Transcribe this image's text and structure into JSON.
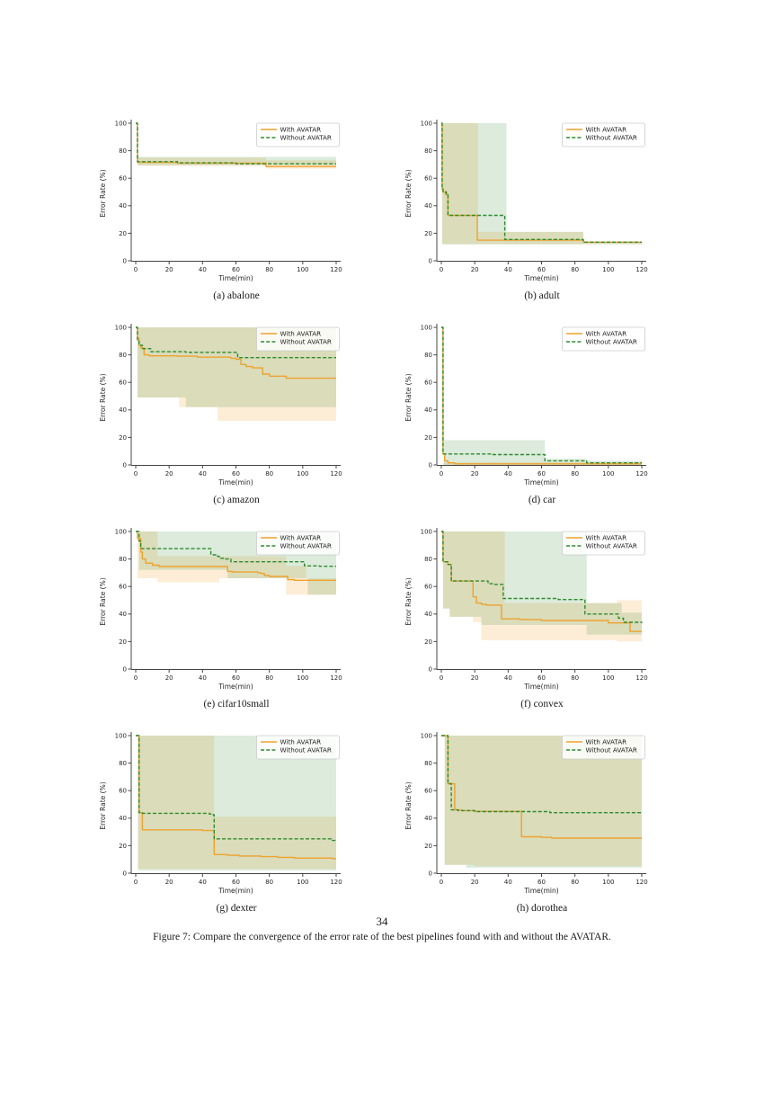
{
  "page": {
    "number": "34",
    "figure_caption": "Figure 7: Compare the convergence of the error rate of the best pipelines found with and without the AVATAR."
  },
  "chart_common": {
    "type": "line",
    "xlabel": "Time(min)",
    "ylabel": "Error Rate (%)",
    "xticks": [
      0,
      20,
      40,
      60,
      80,
      100,
      120
    ],
    "yticks": [
      0,
      20,
      40,
      60,
      80,
      100
    ],
    "xlim": [
      0,
      120
    ],
    "ylim": [
      0,
      105
    ],
    "grid": false,
    "legend": {
      "position": "upper right",
      "entries": [
        {
          "label": "With AVATAR",
          "color": "#efa22d",
          "dash": false
        },
        {
          "label": "Without AVATAR",
          "color": "#2e8b2e",
          "dash": true
        }
      ]
    },
    "band_colors": {
      "With AVATAR": "rgba(245,166,53,0.2)",
      "Without AVATAR": "rgba(46,139,46,0.17)"
    }
  },
  "chart_data": [
    {
      "id": "abalone",
      "caption": "(a) abalone",
      "series": [
        {
          "name": "With AVATAR",
          "points": [
            [
              0,
              100
            ],
            [
              1,
              71.5
            ],
            [
              25,
              71
            ],
            [
              78,
              68.5
            ],
            [
              120,
              68.5
            ]
          ]
        },
        {
          "name": "Without AVATAR",
          "points": [
            [
              0,
              100
            ],
            [
              1,
              72
            ],
            [
              25,
              71.2
            ],
            [
              60,
              70.5
            ],
            [
              120,
              70.5
            ]
          ]
        }
      ],
      "bands": [
        {
          "name": "With AVATAR",
          "steps": [
            [
              1,
              69,
              75
            ],
            [
              78,
              67,
              73
            ],
            [
              120,
              67,
              73
            ]
          ]
        },
        {
          "name": "Without AVATAR",
          "steps": [
            [
              1,
              69.5,
              75.5
            ],
            [
              120,
              69.5,
              75.5
            ]
          ]
        }
      ]
    },
    {
      "id": "adult",
      "caption": "(b) adult",
      "series": [
        {
          "name": "With AVATAR",
          "points": [
            [
              0,
              100
            ],
            [
              0.5,
              52
            ],
            [
              1,
              50
            ],
            [
              2.5,
              48
            ],
            [
              4,
              33
            ],
            [
              21.5,
              15
            ],
            [
              85,
              13.5
            ],
            [
              120,
              13.5
            ]
          ]
        },
        {
          "name": "Without AVATAR",
          "points": [
            [
              0,
              100
            ],
            [
              0.5,
              53
            ],
            [
              1,
              50
            ],
            [
              3,
              48
            ],
            [
              4,
              33
            ],
            [
              38,
              15.5
            ],
            [
              85,
              13.5
            ],
            [
              120,
              13.5
            ]
          ]
        }
      ],
      "bands": [
        {
          "name": "With AVATAR",
          "steps": [
            [
              0.5,
              12,
              100
            ],
            [
              22,
              12,
              21
            ],
            [
              85,
              12,
              14
            ],
            [
              120,
              12,
              14
            ]
          ]
        },
        {
          "name": "Without AVATAR",
          "steps": [
            [
              0.5,
              12,
              100
            ],
            [
              39,
              12,
              21
            ],
            [
              85,
              12,
              14
            ],
            [
              120,
              12,
              14
            ]
          ]
        }
      ]
    },
    {
      "id": "amazon",
      "caption": "(c) amazon",
      "series": [
        {
          "name": "With AVATAR",
          "points": [
            [
              0,
              100
            ],
            [
              1,
              92
            ],
            [
              2,
              87
            ],
            [
              3,
              85
            ],
            [
              5,
              80
            ],
            [
              8,
              79.3
            ],
            [
              25,
              79
            ],
            [
              37,
              78.3
            ],
            [
              57,
              77.5
            ],
            [
              60,
              76.8
            ],
            [
              63,
              73
            ],
            [
              66,
              71.5
            ],
            [
              70,
              70.5
            ],
            [
              76,
              66
            ],
            [
              80,
              64.5
            ],
            [
              90,
              63
            ],
            [
              120,
              63
            ]
          ]
        },
        {
          "name": "Without AVATAR",
          "points": [
            [
              0,
              100
            ],
            [
              1,
              90
            ],
            [
              2,
              87
            ],
            [
              4,
              84.5
            ],
            [
              9,
              82.3
            ],
            [
              30,
              81.8
            ],
            [
              61,
              78
            ],
            [
              120,
              78
            ]
          ]
        }
      ],
      "bands": [
        {
          "name": "With AVATAR",
          "steps": [
            [
              1,
              49,
              100
            ],
            [
              26,
              42,
              100
            ],
            [
              49,
              32,
              100
            ],
            [
              120,
              32,
              100
            ]
          ]
        },
        {
          "name": "Without AVATAR",
          "steps": [
            [
              1,
              49,
              100
            ],
            [
              30,
              42,
              100
            ],
            [
              120,
              42,
              100
            ]
          ]
        }
      ]
    },
    {
      "id": "car",
      "caption": "(d) car",
      "series": [
        {
          "name": "With AVATAR",
          "points": [
            [
              0,
              100
            ],
            [
              1,
              8
            ],
            [
              2,
              3
            ],
            [
              4,
              1.5
            ],
            [
              8,
              0.8
            ],
            [
              120,
              0.8
            ]
          ]
        },
        {
          "name": "Without AVATAR",
          "points": [
            [
              0,
              100
            ],
            [
              1,
              8
            ],
            [
              30,
              7.5
            ],
            [
              62,
              3
            ],
            [
              87,
              1.5
            ],
            [
              120,
              1.5
            ]
          ]
        }
      ],
      "bands": [
        {
          "name": "With AVATAR",
          "steps": [
            [
              1,
              0,
              2
            ],
            [
              120,
              0,
              2
            ]
          ]
        },
        {
          "name": "Without AVATAR",
          "steps": [
            [
              1.5,
              0,
              18
            ],
            [
              62,
              0,
              4.5
            ],
            [
              87,
              0,
              3
            ],
            [
              120,
              0,
              3
            ]
          ]
        }
      ]
    },
    {
      "id": "cifar10small",
      "caption": "(e) cifar10small",
      "series": [
        {
          "name": "With AVATAR",
          "points": [
            [
              0,
              100
            ],
            [
              1,
              95
            ],
            [
              3,
              85
            ],
            [
              4,
              80
            ],
            [
              6,
              77
            ],
            [
              10,
              75.5
            ],
            [
              14,
              74.5
            ],
            [
              55,
              71
            ],
            [
              58,
              70.5
            ],
            [
              73,
              70
            ],
            [
              75,
              69.5
            ],
            [
              77,
              68
            ],
            [
              80,
              67.3
            ],
            [
              91,
              65
            ],
            [
              95,
              64.5
            ],
            [
              120,
              64.5
            ]
          ]
        },
        {
          "name": "Without AVATAR",
          "points": [
            [
              0,
              100
            ],
            [
              2,
              93
            ],
            [
              3,
              87.5
            ],
            [
              45,
              83
            ],
            [
              48,
              82
            ],
            [
              50,
              80.5
            ],
            [
              53,
              80
            ],
            [
              57,
              78
            ],
            [
              101,
              75
            ],
            [
              110,
              74.7
            ],
            [
              120,
              74.7
            ]
          ]
        }
      ],
      "bands": [
        {
          "name": "With AVATAR",
          "steps": [
            [
              1,
              66,
              100
            ],
            [
              13,
              63,
              82
            ],
            [
              50,
              66,
              82
            ],
            [
              90,
              54,
              75
            ],
            [
              102,
              54,
              66
            ],
            [
              120,
              54,
              66
            ]
          ]
        },
        {
          "name": "Without AVATAR",
          "steps": [
            [
              2,
              72,
              100
            ],
            [
              55,
              66,
              100
            ],
            [
              103,
              54,
              100
            ],
            [
              120,
              54,
              100
            ]
          ]
        }
      ]
    },
    {
      "id": "convex",
      "caption": "(f) convex",
      "series": [
        {
          "name": "With AVATAR",
          "points": [
            [
              0,
              100
            ],
            [
              1,
              78
            ],
            [
              4,
              76
            ],
            [
              6,
              64
            ],
            [
              19,
              52.5
            ],
            [
              21,
              48
            ],
            [
              24,
              47
            ],
            [
              27,
              46.5
            ],
            [
              36,
              36.5
            ],
            [
              47,
              36
            ],
            [
              60,
              35.3
            ],
            [
              100,
              33.5
            ],
            [
              113,
              27.3
            ],
            [
              120,
              27.3
            ]
          ]
        },
        {
          "name": "Without AVATAR",
          "points": [
            [
              0,
              100
            ],
            [
              1,
              78
            ],
            [
              4,
              76
            ],
            [
              6,
              64
            ],
            [
              28,
              62
            ],
            [
              31,
              61.5
            ],
            [
              37,
              51.3
            ],
            [
              70,
              50.5
            ],
            [
              86,
              40
            ],
            [
              106,
              37
            ],
            [
              109,
              34
            ],
            [
              120,
              33.5
            ]
          ]
        }
      ],
      "bands": [
        {
          "name": "With AVATAR",
          "steps": [
            [
              1,
              44,
              100
            ],
            [
              5,
              38,
              100
            ],
            [
              19,
              34,
              100
            ],
            [
              24,
              21,
              100
            ],
            [
              38,
              21,
              48
            ],
            [
              105,
              20,
              50
            ],
            [
              120,
              20,
              50
            ]
          ]
        },
        {
          "name": "Without AVATAR",
          "steps": [
            [
              1,
              44,
              100
            ],
            [
              5,
              38,
              100
            ],
            [
              24,
              32,
              100
            ],
            [
              87,
              25,
              48
            ],
            [
              108,
              25,
              41
            ],
            [
              120,
              25,
              41
            ]
          ]
        }
      ]
    },
    {
      "id": "dexter",
      "caption": "(g) dexter",
      "series": [
        {
          "name": "With AVATAR",
          "points": [
            [
              0,
              100
            ],
            [
              2,
              44
            ],
            [
              4,
              31.5
            ],
            [
              40,
              31
            ],
            [
              47,
              13.5
            ],
            [
              55,
              13
            ],
            [
              62,
              12.5
            ],
            [
              75,
              12
            ],
            [
              85,
              11.5
            ],
            [
              95,
              11
            ],
            [
              118,
              10.5
            ],
            [
              120,
              10.5
            ]
          ]
        },
        {
          "name": "Without AVATAR",
          "points": [
            [
              0,
              100
            ],
            [
              2,
              44
            ],
            [
              4,
              43.5
            ],
            [
              44,
              43
            ],
            [
              46,
              42.5
            ],
            [
              47,
              25
            ],
            [
              117,
              23.8
            ],
            [
              120,
              23.8
            ]
          ]
        }
      ],
      "bands": [
        {
          "name": "With AVATAR",
          "steps": [
            [
              1,
              3,
              100
            ],
            [
              47,
              3,
              41
            ],
            [
              120,
              3,
              41
            ]
          ]
        },
        {
          "name": "Without AVATAR",
          "steps": [
            [
              1.5,
              2,
              100
            ],
            [
              120,
              2,
              100
            ]
          ]
        }
      ]
    },
    {
      "id": "dorothea",
      "caption": "(h) dorothea",
      "series": [
        {
          "name": "With AVATAR",
          "points": [
            [
              0,
              100
            ],
            [
              4,
              65
            ],
            [
              8,
              46
            ],
            [
              12,
              45.5
            ],
            [
              20,
              45
            ],
            [
              48,
              26.5
            ],
            [
              60,
              26
            ],
            [
              66,
              25.5
            ],
            [
              120,
              25.5
            ]
          ]
        },
        {
          "name": "Without AVATAR",
          "points": [
            [
              0,
              100
            ],
            [
              4,
              65
            ],
            [
              6,
              46
            ],
            [
              10,
              45.5
            ],
            [
              20,
              44.8
            ],
            [
              65,
              44
            ],
            [
              120,
              43.8
            ]
          ]
        }
      ],
      "bands": [
        {
          "name": "With AVATAR",
          "steps": [
            [
              2,
              6,
              100
            ],
            [
              20,
              5,
              100
            ],
            [
              120,
              5,
              100
            ]
          ]
        },
        {
          "name": "Without AVATAR",
          "steps": [
            [
              2,
              6,
              100
            ],
            [
              15,
              4,
              100
            ],
            [
              120,
              4,
              100
            ]
          ]
        }
      ]
    }
  ]
}
